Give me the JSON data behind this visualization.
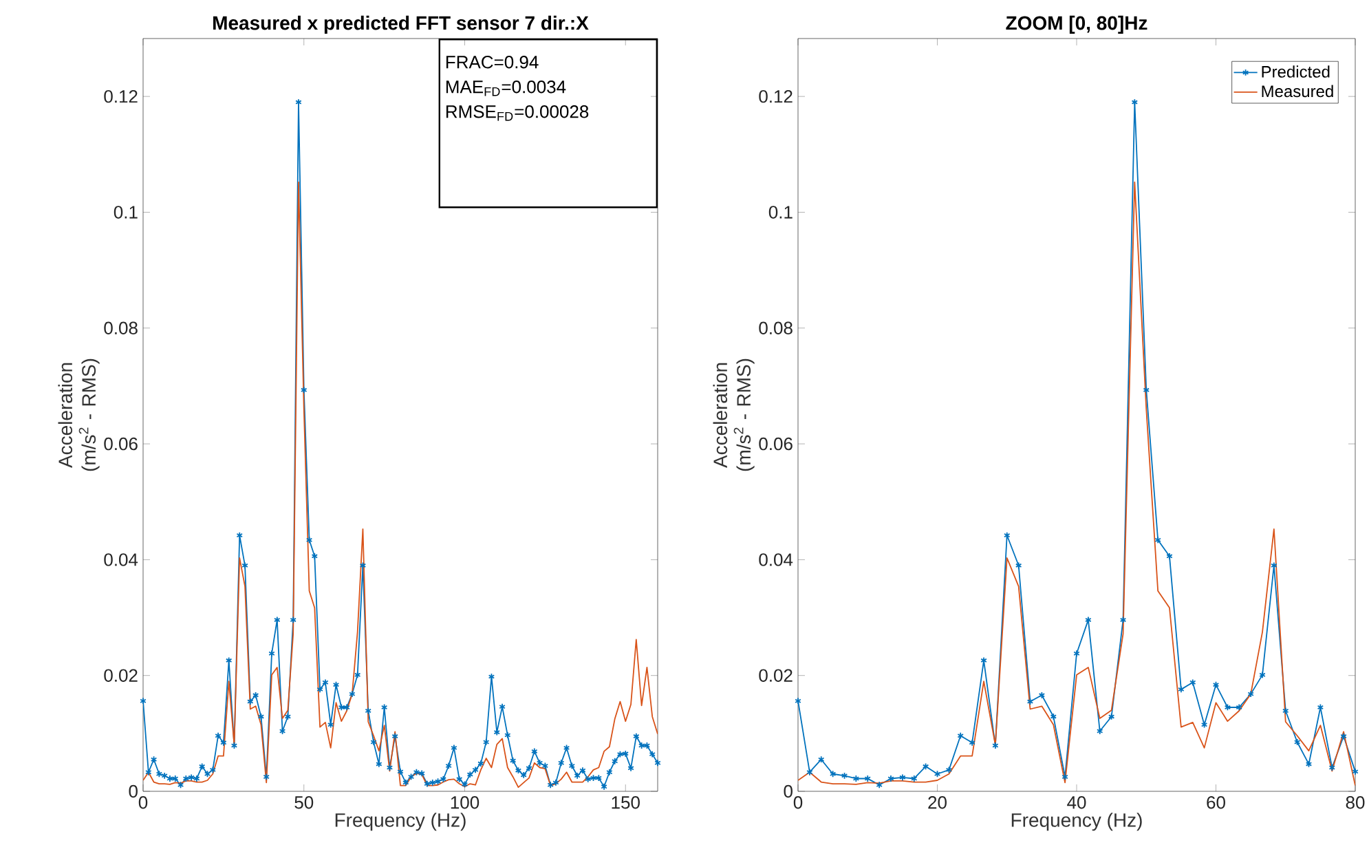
{
  "chart_data": [
    {
      "type": "line",
      "title": "Measured x predicted FFT sensor 7 dir.:X",
      "xlabel": "Frequency (Hz)",
      "ylabel": "Acceleration (m/s$^{2}$ - RMS)",
      "annotations": [
        "FRAC=0.94",
        "MAE$_{FD}$=0.0034",
        "RMSE$_{FD}$=0.00028"
      ],
      "x": [
        0,
        1.67,
        3.33,
        5,
        6.67,
        8.33,
        10,
        11.67,
        13.33,
        15,
        16.67,
        18.33,
        20,
        21.67,
        23.33,
        25,
        26.67,
        28.33,
        30,
        31.67,
        33.33,
        35,
        36.67,
        38.33,
        40,
        41.67,
        43.33,
        45,
        46.67,
        48.33,
        50,
        51.67,
        53.33,
        55,
        56.67,
        58.33,
        60,
        61.67,
        63.33,
        65,
        66.67,
        68.33,
        70,
        71.67,
        73.33,
        75,
        76.67,
        78.33,
        80,
        81.67,
        83.33,
        85,
        86.67,
        88.33,
        90,
        91.67,
        93.33,
        95,
        96.67,
        98.33,
        100,
        101.67,
        103.33,
        105,
        106.67,
        108.33,
        110,
        111.67,
        113.33,
        115,
        116.67,
        118.33,
        120,
        121.67,
        123.33,
        125,
        126.67,
        128.33,
        130,
        131.67,
        133.33,
        135,
        136.67,
        138.33,
        140,
        141.67,
        143.33,
        145,
        146.67,
        148.33,
        150,
        151.67,
        153.33,
        155,
        156.67,
        158.33,
        160
      ],
      "xlim": [
        0,
        160
      ],
      "xticks": [
        0,
        50,
        100,
        150
      ],
      "ylim": [
        0,
        0.13
      ],
      "yticks": [
        0,
        0.02,
        0.04,
        0.06,
        0.08,
        0.1,
        0.12
      ],
      "grid": false,
      "legend": false,
      "series": [
        {
          "color": "#0072bd",
          "marker": "cross",
          "values": [
            0.0156,
            0.0033,
            0.0055,
            0.003,
            0.0027,
            0.0022,
            0.0022,
            0.0011,
            0.0022,
            0.0024,
            0.0022,
            0.0043,
            0.003,
            0.0037,
            0.0096,
            0.0084,
            0.0226,
            0.0079,
            0.0442,
            0.039,
            0.0155,
            0.0166,
            0.0129,
            0.0025,
            0.0238,
            0.0296,
            0.0104,
            0.0129,
            0.0296,
            0.119,
            0.0693,
            0.0434,
            0.0406,
            0.0176,
            0.0188,
            0.0115,
            0.0184,
            0.0145,
            0.0145,
            0.0168,
            0.0201,
            0.039,
            0.0139,
            0.0085,
            0.0047,
            0.0145,
            0.0041,
            0.0095,
            0.0034,
            0.0015,
            0.0025,
            0.0033,
            0.0031,
            0.0013,
            0.0015,
            0.0017,
            0.0021,
            0.0044,
            0.0075,
            0.0021,
            0.0012,
            0.0029,
            0.0037,
            0.0048,
            0.0085,
            0.0198,
            0.0102,
            0.0146,
            0.0097,
            0.0053,
            0.0036,
            0.0028,
            0.004,
            0.0069,
            0.0049,
            0.0044,
            0.0011,
            0.0015,
            0.0049,
            0.0075,
            0.0044,
            0.0027,
            0.0036,
            0.0021,
            0.0023,
            0.0023,
            0.0008,
            0.0033,
            0.0052,
            0.0064,
            0.0065,
            0.004,
            0.0095,
            0.0079,
            0.0079,
            0.0064,
            0.0049
          ]
        },
        {
          "color": "#d95319",
          "marker": "none",
          "values": [
            0.0019,
            0.0033,
            0.0016,
            0.0013,
            0.0013,
            0.0012,
            0.0015,
            0.0014,
            0.0018,
            0.0018,
            0.0016,
            0.0016,
            0.0019,
            0.003,
            0.0061,
            0.0061,
            0.019,
            0.008,
            0.0403,
            0.0354,
            0.0142,
            0.0147,
            0.0115,
            0.0015,
            0.0201,
            0.0214,
            0.0126,
            0.014,
            0.0272,
            0.1052,
            0.066,
            0.0346,
            0.0317,
            0.0111,
            0.0119,
            0.0075,
            0.0153,
            0.0121,
            0.0139,
            0.0168,
            0.0275,
            0.0453,
            0.012,
            0.0096,
            0.007,
            0.0114,
            0.0035,
            0.0103,
            0.001,
            0.001,
            0.0025,
            0.0031,
            0.0029,
            0.001,
            0.001,
            0.0011,
            0.0016,
            0.002,
            0.0021,
            0.0013,
            0.0008,
            0.0013,
            0.0011,
            0.0037,
            0.0057,
            0.0041,
            0.0081,
            0.0091,
            0.0041,
            0.0025,
            0.0007,
            0.0015,
            0.0023,
            0.0049,
            0.0041,
            0.0039,
            0.001,
            0.0013,
            0.0021,
            0.0033,
            0.0016,
            0.0016,
            0.0016,
            0.0025,
            0.0037,
            0.0041,
            0.0069,
            0.0077,
            0.0125,
            0.0155,
            0.0121,
            0.015,
            0.0262,
            0.0148,
            0.0214,
            0.0129,
            0.0099
          ]
        }
      ]
    },
    {
      "type": "line",
      "title": "ZOOM [0, 80]Hz",
      "xlabel": "Frequency (Hz)",
      "ylabel": "Acceleration (m/s$^{2}$ - RMS)",
      "x": [
        0,
        1.67,
        3.33,
        5,
        6.67,
        8.33,
        10,
        11.67,
        13.33,
        15,
        16.67,
        18.33,
        20,
        21.67,
        23.33,
        25,
        26.67,
        28.33,
        30,
        31.67,
        33.33,
        35,
        36.67,
        38.33,
        40,
        41.67,
        43.33,
        45,
        46.67,
        48.33,
        50,
        51.67,
        53.33,
        55,
        56.67,
        58.33,
        60,
        61.67,
        63.33,
        65,
        66.67,
        68.33,
        70,
        71.67,
        73.33,
        75,
        76.67,
        78.33,
        80
      ],
      "xlim": [
        0,
        80
      ],
      "xticks": [
        0,
        20,
        40,
        60,
        80
      ],
      "ylim": [
        0,
        0.13
      ],
      "yticks": [
        0,
        0.02,
        0.04,
        0.06,
        0.08,
        0.1,
        0.12
      ],
      "grid": false,
      "legend": "top right",
      "series": [
        {
          "name": "Predicted",
          "color": "#0072bd",
          "marker": "cross",
          "values": [
            0.0156,
            0.0033,
            0.0055,
            0.003,
            0.0027,
            0.0022,
            0.0022,
            0.0011,
            0.0022,
            0.0024,
            0.0022,
            0.0043,
            0.003,
            0.0037,
            0.0096,
            0.0084,
            0.0226,
            0.0079,
            0.0442,
            0.039,
            0.0155,
            0.0166,
            0.0129,
            0.0025,
            0.0238,
            0.0296,
            0.0104,
            0.0129,
            0.0296,
            0.119,
            0.0693,
            0.0434,
            0.0406,
            0.0176,
            0.0188,
            0.0115,
            0.0184,
            0.0145,
            0.0145,
            0.0168,
            0.0201,
            0.039,
            0.0139,
            0.0085,
            0.0047,
            0.0145,
            0.0041,
            0.0095,
            0.0034
          ]
        },
        {
          "name": "Measured",
          "color": "#d95319",
          "marker": "none",
          "values": [
            0.0019,
            0.0033,
            0.0016,
            0.0013,
            0.0013,
            0.0012,
            0.0015,
            0.0014,
            0.0018,
            0.0018,
            0.0016,
            0.0016,
            0.0019,
            0.003,
            0.0061,
            0.0061,
            0.019,
            0.008,
            0.0403,
            0.0354,
            0.0142,
            0.0147,
            0.0115,
            0.0015,
            0.0201,
            0.0214,
            0.0126,
            0.014,
            0.0272,
            0.1052,
            0.066,
            0.0346,
            0.0317,
            0.0111,
            0.0119,
            0.0075,
            0.0153,
            0.0121,
            0.0139,
            0.0168,
            0.0275,
            0.0453,
            0.012,
            0.0096,
            0.007,
            0.0114,
            0.0035,
            0.0103,
            0.001
          ]
        }
      ]
    }
  ]
}
